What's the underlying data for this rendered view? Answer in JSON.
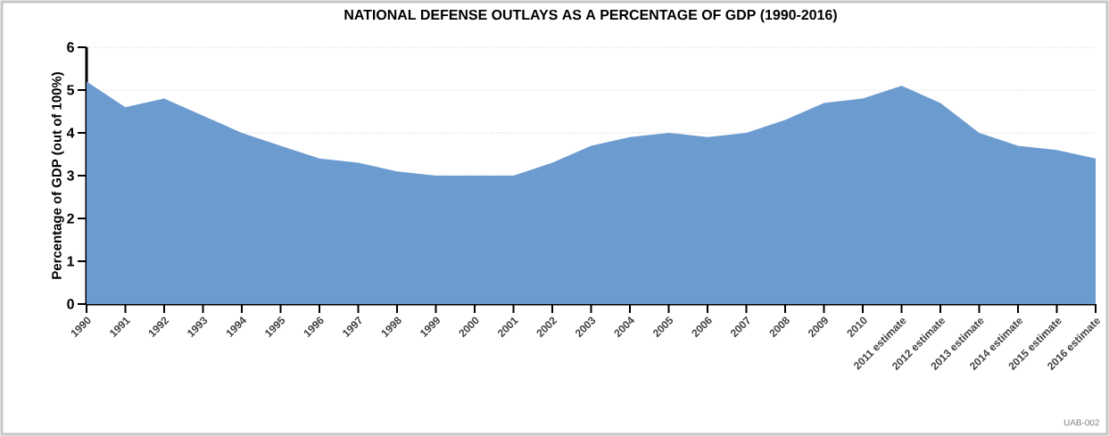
{
  "chart_data": {
    "type": "area",
    "title": "NATIONAL DEFENSE OUTLAYS AS A PERCENTAGE OF GDP (1990-2016)",
    "ylabel": "Percentage of GDP (out of 100%)",
    "categories": [
      "1990",
      "1991",
      "1992",
      "1993",
      "1994",
      "1995",
      "1996",
      "1997",
      "1998",
      "1999",
      "2000",
      "2001",
      "2002",
      "2003",
      "2004",
      "2005",
      "2006",
      "2007",
      "2008",
      "2009",
      "2010",
      "2011 estimate",
      "2012 estimate",
      "2013 estimate",
      "2014 estimate",
      "2015 estimate",
      "2016 estimate"
    ],
    "values": [
      5.2,
      4.6,
      4.8,
      4.4,
      4.0,
      3.7,
      3.4,
      3.3,
      3.1,
      3.0,
      3.0,
      3.0,
      3.3,
      3.7,
      3.9,
      4.0,
      3.9,
      4.0,
      4.3,
      4.7,
      4.8,
      5.1,
      4.7,
      4.0,
      3.7,
      3.6,
      3.4
    ],
    "color": "#6b9bcf",
    "ylim": [
      0,
      6
    ],
    "yticks": [
      0,
      1,
      2,
      3,
      4,
      5,
      6
    ],
    "grid": "y",
    "annotations": [
      "UAB-002"
    ]
  }
}
